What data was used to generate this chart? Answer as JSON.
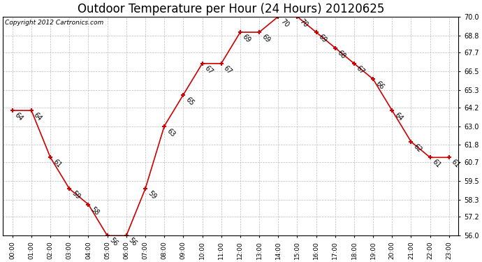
{
  "title": "Outdoor Temperature per Hour (24 Hours) 20120625",
  "copyright": "Copyright 2012 Cartronics.com",
  "hours": [
    "00:00",
    "01:00",
    "02:00",
    "03:00",
    "04:00",
    "05:00",
    "06:00",
    "07:00",
    "08:00",
    "09:00",
    "10:00",
    "11:00",
    "12:00",
    "13:00",
    "14:00",
    "15:00",
    "16:00",
    "17:00",
    "18:00",
    "19:00",
    "20:00",
    "21:00",
    "22:00",
    "23:00"
  ],
  "temps": [
    64,
    64,
    61,
    59,
    58,
    56,
    56,
    59,
    63,
    65,
    67,
    67,
    69,
    69,
    70,
    70,
    69,
    68,
    67,
    66,
    64,
    62,
    61,
    61
  ],
  "line_color": "#cc0000",
  "marker_color": "#cc0000",
  "bg_color": "#ffffff",
  "grid_color": "#bbbbbb",
  "ylim_min": 56.0,
  "ylim_max": 70.0,
  "yticks": [
    56.0,
    57.2,
    58.3,
    59.5,
    60.7,
    61.8,
    63.0,
    64.2,
    65.3,
    66.5,
    67.7,
    68.8,
    70.0
  ],
  "title_fontsize": 12,
  "label_fontsize": 7,
  "copyright_fontsize": 6.5,
  "tick_fontsize": 7,
  "xtick_fontsize": 6.5
}
